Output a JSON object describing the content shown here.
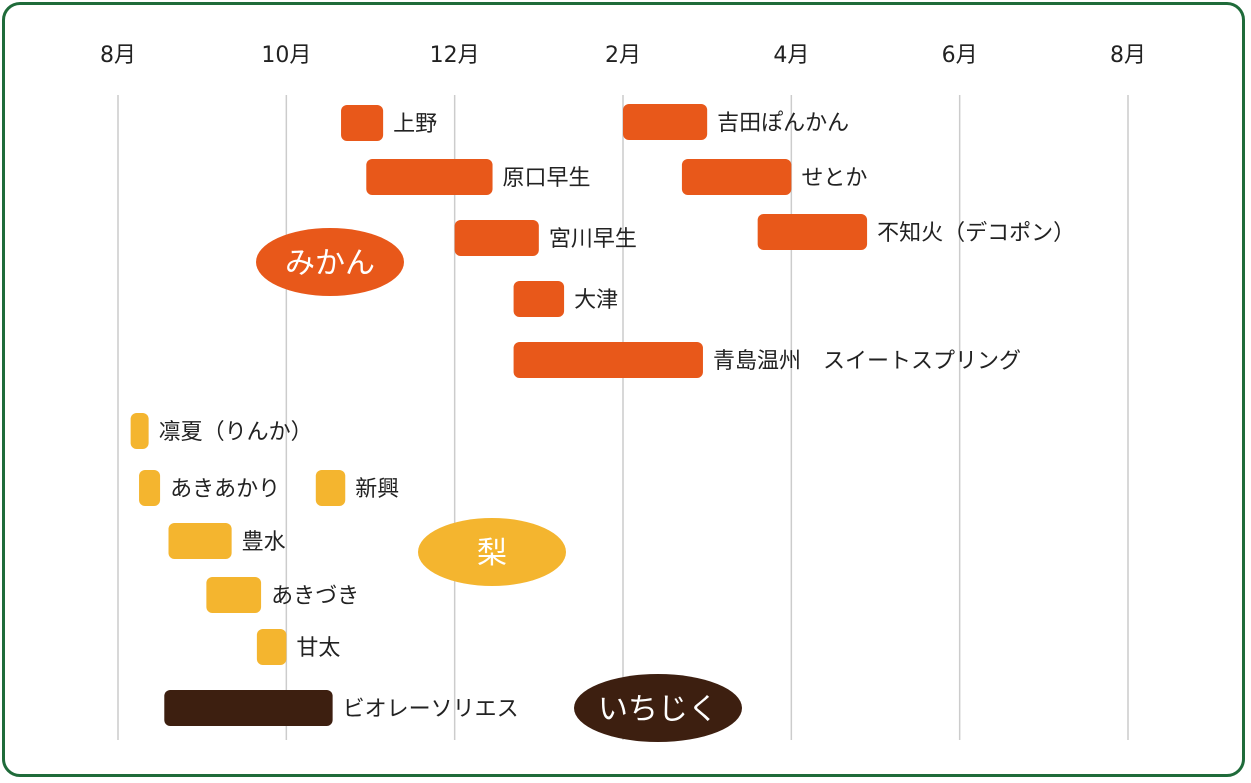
{
  "chart_data": {
    "type": "gantt",
    "title": "",
    "months": [
      "8月",
      "10月",
      "12月",
      "2月",
      "4月",
      "6月",
      "8月"
    ],
    "x_domain": [
      0,
      12
    ],
    "x_unit": "months from August",
    "grid": true,
    "colors": {
      "mikan": "#e8581a",
      "nashi": "#f4b52f",
      "ichijiku": "#3d1f10",
      "frame": "#1f6b3a",
      "grid": "#cccccc"
    },
    "groups": [
      {
        "id": "mikan",
        "label": "みかん",
        "color": "#e8581a"
      },
      {
        "id": "nashi",
        "label": "梨",
        "color": "#f4b52f"
      },
      {
        "id": "ichijiku",
        "label": "いちじく",
        "color": "#3d1f10"
      }
    ],
    "series": [
      {
        "name": "上野",
        "group": "mikan",
        "start": 2.65,
        "end": 3.15
      },
      {
        "name": "原口早生",
        "group": "mikan",
        "start": 2.95,
        "end": 4.45
      },
      {
        "name": "宮川早生",
        "group": "mikan",
        "start": 4.0,
        "end": 5.0
      },
      {
        "name": "大津",
        "group": "mikan",
        "start": 4.7,
        "end": 5.3
      },
      {
        "name": "青島温州　スイートスプリング",
        "group": "mikan",
        "start": 4.7,
        "end": 6.95
      },
      {
        "name": "吉田ぽんかん",
        "group": "mikan",
        "start": 6.0,
        "end": 7.0
      },
      {
        "name": "せとか",
        "group": "mikan",
        "start": 6.7,
        "end": 8.0
      },
      {
        "name": "不知火（デコポン）",
        "group": "mikan",
        "start": 7.6,
        "end": 8.9
      },
      {
        "name": "凛夏（りんか）",
        "group": "nashi",
        "start": 0.15,
        "end": 0.35
      },
      {
        "name": "あきあかり",
        "group": "nashi",
        "start": 0.25,
        "end": 0.5
      },
      {
        "name": "新興",
        "group": "nashi",
        "start": 2.35,
        "end": 2.7
      },
      {
        "name": "豊水",
        "group": "nashi",
        "start": 0.6,
        "end": 1.35
      },
      {
        "name": "あきづき",
        "group": "nashi",
        "start": 1.05,
        "end": 1.7
      },
      {
        "name": "甘太",
        "group": "nashi",
        "start": 1.65,
        "end": 2.0
      },
      {
        "name": "ビオレーソリエス",
        "group": "ichijiku",
        "start": 0.55,
        "end": 2.55
      }
    ]
  }
}
